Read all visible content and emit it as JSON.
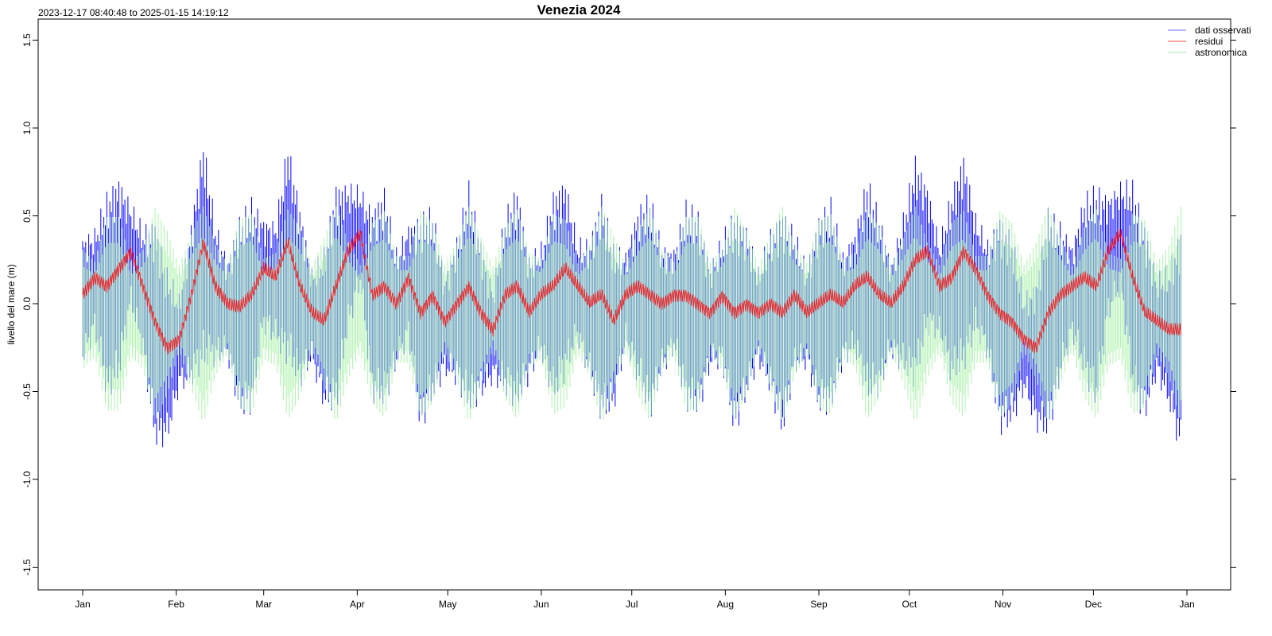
{
  "chart_data": {
    "type": "line",
    "title": "Venezia 2024",
    "subtitle": "2023-12-17 08:40:48 to 2025-01-15 14:19:12",
    "xlabel": "",
    "ylabel": "livello del mare (m)",
    "ylim": [
      -1.6,
      1.6
    ],
    "yticks": [
      "-1.5",
      "-1.0",
      "-0.5",
      "0.0",
      "0.5",
      "1.0",
      "1.5"
    ],
    "ytick_values": [
      -1.5,
      -1.0,
      -0.5,
      0.0,
      0.5,
      1.0,
      1.5
    ],
    "xticks": [
      "Jan",
      "Feb",
      "Mar",
      "Apr",
      "May",
      "Jun",
      "Jul",
      "Aug",
      "Sep",
      "Oct",
      "Nov",
      "Dec",
      "Jan"
    ],
    "xtick_days": [
      0,
      31,
      60,
      91,
      121,
      152,
      182,
      213,
      244,
      274,
      305,
      335,
      366
    ],
    "xlim_days": [
      -15,
      381
    ],
    "legend_position": "top-right",
    "legend": [
      {
        "name": "dati osservati",
        "color": "#0000ff"
      },
      {
        "name": "residui",
        "color": "#ff0000"
      },
      {
        "name": "astronomica",
        "color": "#90ee90"
      }
    ],
    "sample_step_days": 4,
    "astronomica_half_range": [
      0.36,
      0.28,
      0.58,
      0.58,
      0.28,
      0.36,
      0.64,
      0.49,
      0.25,
      0.46,
      0.65,
      0.39,
      0.27,
      0.56,
      0.6,
      0.3,
      0.34,
      0.63,
      0.51,
      0.25,
      0.44,
      0.65,
      0.41,
      0.26,
      0.54,
      0.62,
      0.32,
      0.32,
      0.62,
      0.54,
      0.26,
      0.41,
      0.65,
      0.44,
      0.25,
      0.51,
      0.63,
      0.34,
      0.3,
      0.6,
      0.56,
      0.27,
      0.39,
      0.65,
      0.46,
      0.25,
      0.49,
      0.64,
      0.36,
      0.28,
      0.58,
      0.58,
      0.28,
      0.36,
      0.64,
      0.49,
      0.25,
      0.46,
      0.65,
      0.39,
      0.27,
      0.56,
      0.6,
      0.3,
      0.34,
      0.63,
      0.51,
      0.25,
      0.44,
      0.65,
      0.41,
      0.26,
      0.54,
      0.62,
      0.32,
      0.32,
      0.62,
      0.54,
      0.26,
      0.41,
      0.65,
      0.44,
      0.25,
      0.51,
      0.63,
      0.34,
      0.3,
      0.6,
      0.56,
      0.27,
      0.39,
      0.65
    ],
    "residui": [
      0.05,
      0.15,
      0.1,
      0.2,
      0.3,
      0.1,
      -0.1,
      -0.25,
      -0.2,
      0.05,
      0.35,
      0.1,
      0.0,
      -0.02,
      0.05,
      0.2,
      0.15,
      0.35,
      0.1,
      -0.05,
      -0.1,
      0.1,
      0.3,
      0.4,
      0.05,
      0.1,
      0.0,
      0.15,
      -0.05,
      0.05,
      -0.1,
      0.0,
      0.1,
      -0.05,
      -0.15,
      0.05,
      0.1,
      -0.05,
      0.05,
      0.1,
      0.2,
      0.1,
      0.0,
      0.05,
      -0.1,
      0.05,
      0.1,
      0.05,
      0.0,
      0.05,
      0.05,
      0.0,
      -0.05,
      0.05,
      -0.05,
      0.0,
      -0.05,
      0.0,
      -0.05,
      0.05,
      -0.05,
      0.0,
      0.05,
      0.0,
      0.1,
      0.15,
      0.05,
      0.0,
      0.1,
      0.25,
      0.3,
      0.1,
      0.15,
      0.3,
      0.2,
      0.05,
      -0.05,
      -0.1,
      -0.2,
      -0.25,
      -0.05,
      0.05,
      0.1,
      0.15,
      0.1,
      0.3,
      0.4,
      0.15,
      -0.05,
      -0.1,
      -0.15,
      -0.15
    ]
  }
}
